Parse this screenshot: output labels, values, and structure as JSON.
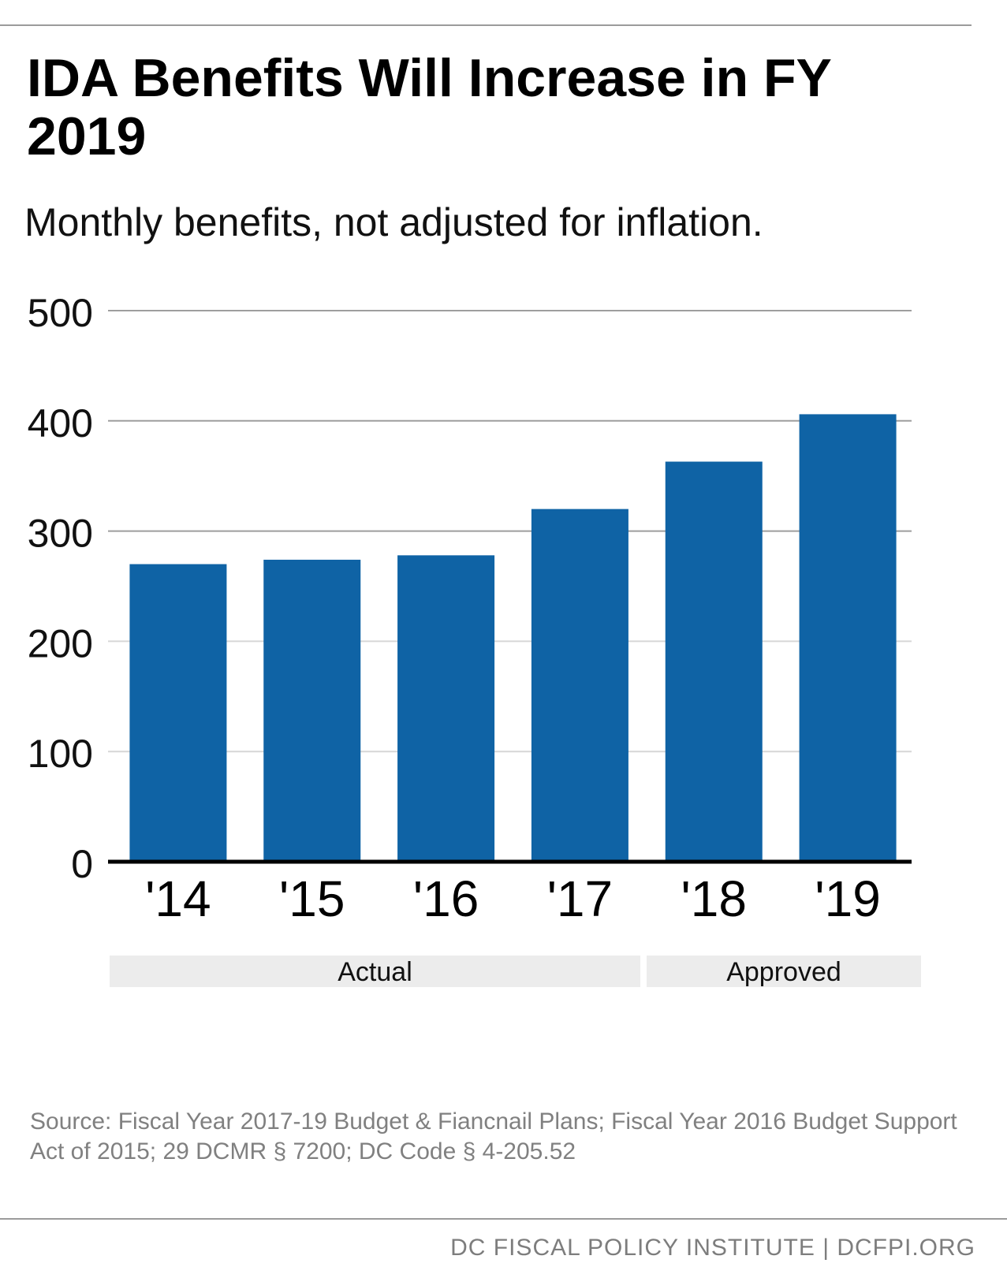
{
  "title": "IDA Benefits Will Increase in FY 2019",
  "subtitle": "Monthly benefits, not adjusted for inflation.",
  "chart_data": {
    "type": "bar",
    "categories": [
      "'14",
      "'15",
      "'16",
      "'17",
      "'18",
      "'19"
    ],
    "values": [
      270,
      274,
      278,
      320,
      363,
      406
    ],
    "ylim": [
      0,
      500
    ],
    "yticks": [
      0,
      100,
      200,
      300,
      400,
      500
    ],
    "xlabel": "",
    "ylabel": "",
    "bar_color": "#0f63a5",
    "grid": true,
    "groups": [
      {
        "label": "Actual",
        "categories": [
          "'14",
          "'15",
          "'16",
          "'17"
        ]
      },
      {
        "label": "Approved",
        "categories": [
          "'18",
          "'19"
        ]
      }
    ]
  },
  "source": "Source: Fiscal Year 2017-19 Budget & Fiancnail Plans; Fiscal Year 2016 Budget Support Act of 2015; 29 DCMR § 7200; DC Code § 4-205.52",
  "footer": "DC FISCAL POLICY INSTITUTE | DCFPI.ORG"
}
